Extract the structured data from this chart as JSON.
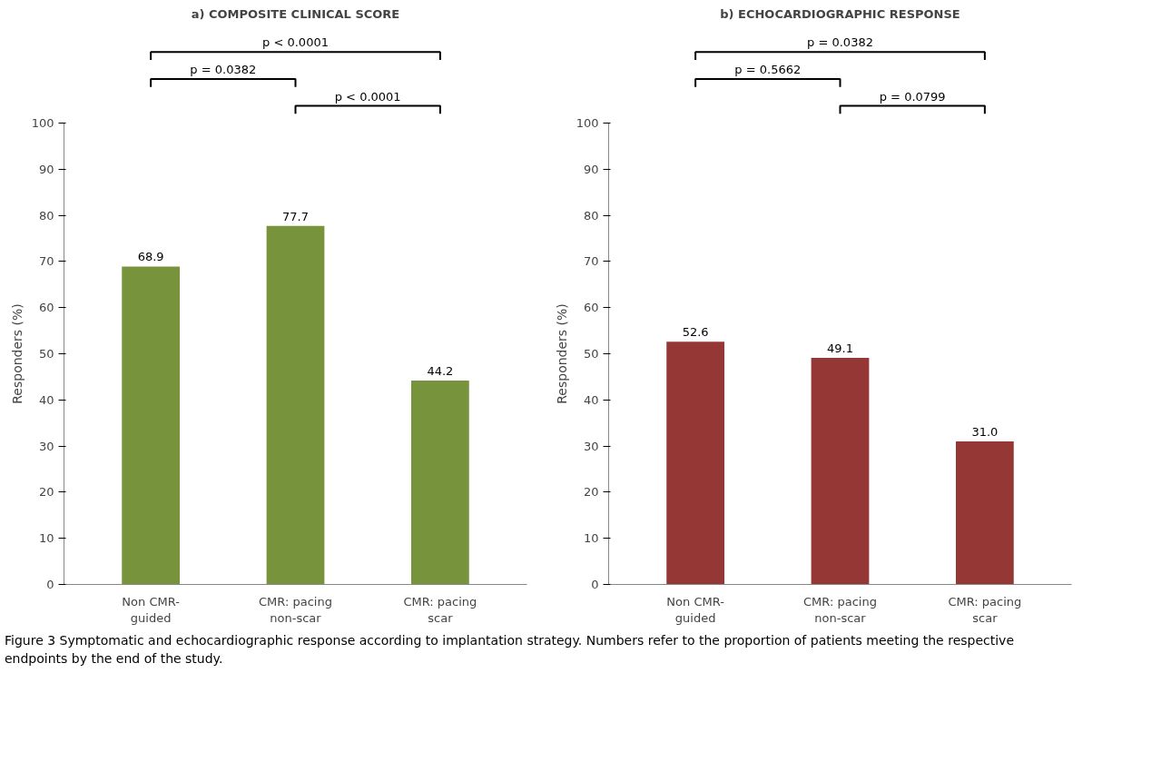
{
  "chart_data": [
    {
      "type": "bar",
      "title": "a) COMPOSITE CLINICAL SCORE",
      "ylabel": "Responders (%)",
      "categories": [
        "Non CMR-guided",
        "CMR: pacing non-scar",
        "CMR: pacing scar"
      ],
      "values": [
        68.9,
        77.7,
        44.2
      ],
      "color": "#77933c",
      "value_labels": [
        "68.9",
        "77.7",
        "44.2"
      ],
      "ylim": [
        0,
        100
      ],
      "yticks": [
        0,
        10,
        20,
        30,
        40,
        50,
        60,
        70,
        80,
        90,
        100
      ],
      "annotations": [
        "p < 0.0001",
        "p = 0.0382",
        "p < 0.0001",
        "Figure 3 Symptomatic and echocardiographic response according to implantation strategy. Numbers refer to the proportion of patients meeting the respective endpoints by the end of the study."
      ]
    },
    {
      "type": "bar",
      "title": "b) ECHOCARDIOGRAPHIC RESPONSE",
      "ylabel": "Responders (%)",
      "categories": [
        "Non CMR-guided",
        "CMR: pacing non-scar",
        "CMR: pacing scar"
      ],
      "values": [
        52.6,
        49.1,
        31.0
      ],
      "color": "#953735",
      "value_labels": [
        "52.6",
        "49.1",
        "31.0"
      ],
      "ylim": [
        0,
        100
      ],
      "yticks": [
        0,
        10,
        20,
        30,
        40,
        50,
        60,
        70,
        80,
        90,
        100
      ],
      "annotations": [
        "p = 0.0382",
        "p = 0.5662",
        "p = 0.0799"
      ]
    }
  ]
}
